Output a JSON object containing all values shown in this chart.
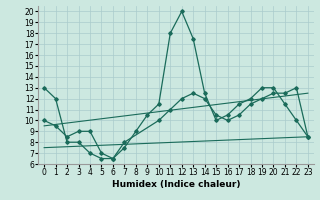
{
  "xlabel": "Humidex (Indice chaleur)",
  "bg_color": "#cce8e0",
  "grid_color": "#aacccc",
  "line_color": "#1a6b5a",
  "xlim": [
    -0.5,
    23.5
  ],
  "ylim": [
    6,
    20.5
  ],
  "yticks": [
    6,
    7,
    8,
    9,
    10,
    11,
    12,
    13,
    14,
    15,
    16,
    17,
    18,
    19,
    20
  ],
  "xticks": [
    0,
    1,
    2,
    3,
    4,
    5,
    6,
    7,
    8,
    9,
    10,
    11,
    12,
    13,
    14,
    15,
    16,
    17,
    18,
    19,
    20,
    21,
    22,
    23
  ],
  "line1_x": [
    0,
    1,
    2,
    3,
    4,
    5,
    6,
    7,
    8,
    9,
    10,
    11,
    12,
    13,
    14,
    15,
    16,
    17,
    18,
    19,
    20,
    21,
    22,
    23
  ],
  "line1_y": [
    13,
    12,
    8,
    8,
    7,
    6.5,
    6.5,
    7.5,
    9,
    10.5,
    11.5,
    18,
    20,
    17.5,
    12.5,
    10,
    10.5,
    11.5,
    12,
    13,
    13,
    11.5,
    10,
    8.5
  ],
  "line2_x": [
    0,
    1,
    2,
    3,
    4,
    5,
    6,
    7,
    10,
    11,
    12,
    13,
    14,
    15,
    16,
    17,
    18,
    19,
    20,
    21,
    22,
    23
  ],
  "line2_y": [
    10,
    9.5,
    8.5,
    9,
    9,
    7,
    6.5,
    8,
    10,
    11,
    12,
    12.5,
    12,
    10.5,
    10,
    10.5,
    11.5,
    12,
    12.5,
    12.5,
    13,
    8.5
  ],
  "line3_x": [
    0,
    23
  ],
  "line3_y": [
    9.5,
    12.5
  ],
  "line4_x": [
    0,
    23
  ],
  "line4_y": [
    7.5,
    8.5
  ]
}
